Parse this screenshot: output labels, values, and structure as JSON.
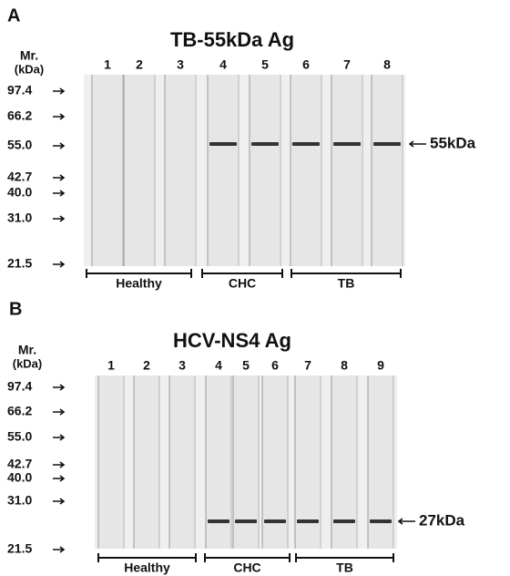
{
  "panels": [
    {
      "label": "A",
      "title": "TB-55kDa Ag",
      "mr": "Mr.",
      "unit": "(kDa)",
      "lanes": [
        "1",
        "2",
        "3",
        "4",
        "5",
        "6",
        "7",
        "8"
      ],
      "markers": [
        "97.4",
        "66.2",
        "55.0",
        "42.7",
        "40.0",
        "31.0",
        "21.5"
      ],
      "groups": [
        "Healthy",
        "CHC",
        "TB"
      ],
      "band_label": "55kDa"
    },
    {
      "label": "B",
      "title": "HCV-NS4 Ag",
      "mr": "Mr.",
      "unit": "(kDa)",
      "lanes": [
        "1",
        "2",
        "3",
        "4",
        "5",
        "6",
        "7",
        "8",
        "9"
      ],
      "markers": [
        "97.4",
        "66.2",
        "55.0",
        "42.7",
        "40.0",
        "31.0",
        "21.5"
      ],
      "groups": [
        "Healthy",
        "CHC",
        "TB"
      ],
      "band_label": "27kDa"
    }
  ]
}
